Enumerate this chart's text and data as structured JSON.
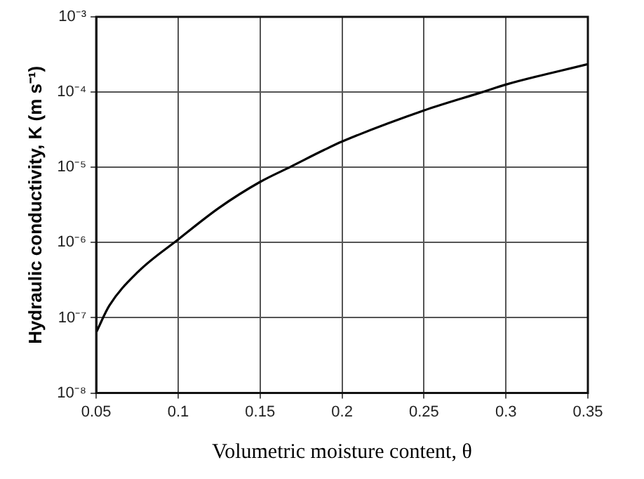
{
  "chart_data": {
    "type": "line",
    "xlabel": "Volumetric moisture content, θ",
    "ylabel": "Hydraulic conductivity, K (m s⁻¹)",
    "x": [
      0.05,
      0.058,
      0.0756,
      0.1,
      0.125,
      0.15,
      0.1687,
      0.189,
      0.2,
      0.25,
      0.2856,
      0.3,
      0.35
    ],
    "series": [
      {
        "color": "#000000",
        "values": [
          6.4e-08,
          1.45e-07,
          4.1e-07,
          1.1e-06,
          2.9e-06,
          6.4e-06,
          1.02e-05,
          1.7e-05,
          2.2e-05,
          5.7e-05,
          0.0001,
          0.000126,
          0.000235
        ]
      }
    ],
    "log": "y",
    "xlim": [
      0.05,
      0.35
    ],
    "xticks": [
      0.05,
      0.1,
      0.15,
      0.2,
      0.25,
      0.3,
      {
        "value": 0.35,
        "label": "0.35"
      }
    ],
    "ylim": [
      1e-08,
      0.001
    ],
    "yticks": [
      {
        "value": 1e-08,
        "label": "10⁻⁸"
      },
      {
        "value": 1e-07,
        "label": "10⁻⁷"
      },
      {
        "value": 1e-06,
        "label": "10⁻⁶"
      },
      {
        "value": 1e-05,
        "label": "10⁻⁵"
      },
      {
        "value": 0.0001,
        "label": "10⁻⁴"
      },
      {
        "value": 0.001,
        "label": "10⁻³"
      }
    ],
    "grid": true,
    "legend": false,
    "marker": "none",
    "line_style": "solid"
  }
}
